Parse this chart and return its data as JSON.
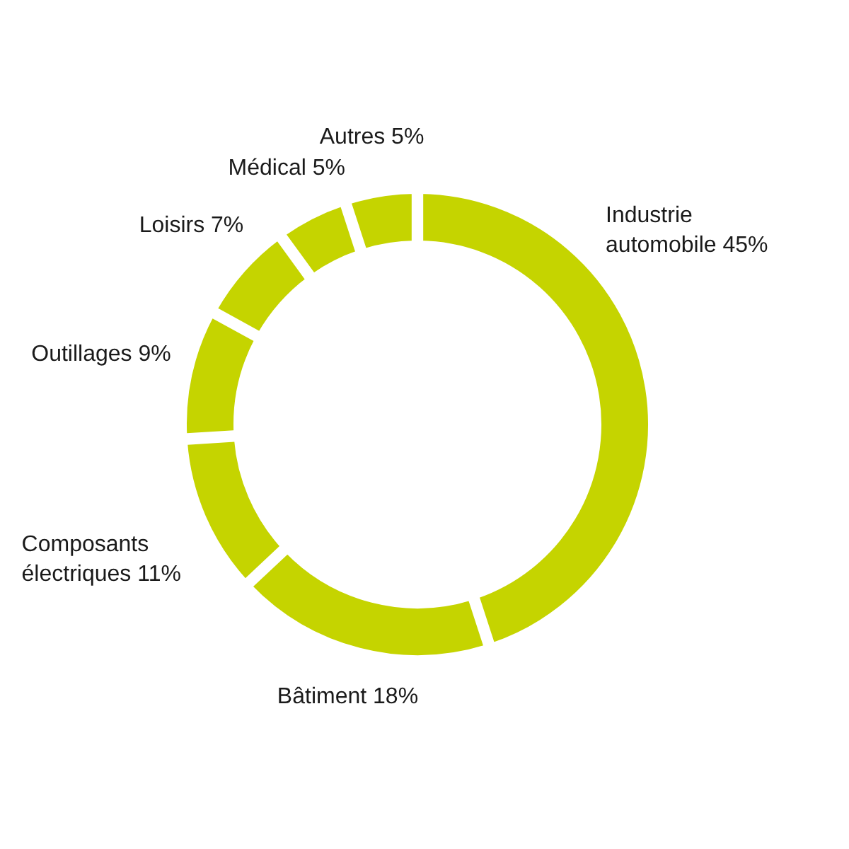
{
  "chart_data": {
    "type": "donut",
    "categories": [
      "Industrie automobile",
      "Bâtiment",
      "Composants électriques",
      "Outillages",
      "Loisirs",
      "Médical",
      "Autres"
    ],
    "values": [
      45,
      18,
      11,
      9,
      7,
      5,
      5
    ],
    "value_labels": [
      "45%",
      "18%",
      "11%",
      "9%",
      "7%",
      "5%",
      "5%"
    ],
    "colors": [
      "#c5d400",
      "#c5d400",
      "#c5d400",
      "#c5d400",
      "#c5d400",
      "#c5d400",
      "#c5d400"
    ]
  }
}
